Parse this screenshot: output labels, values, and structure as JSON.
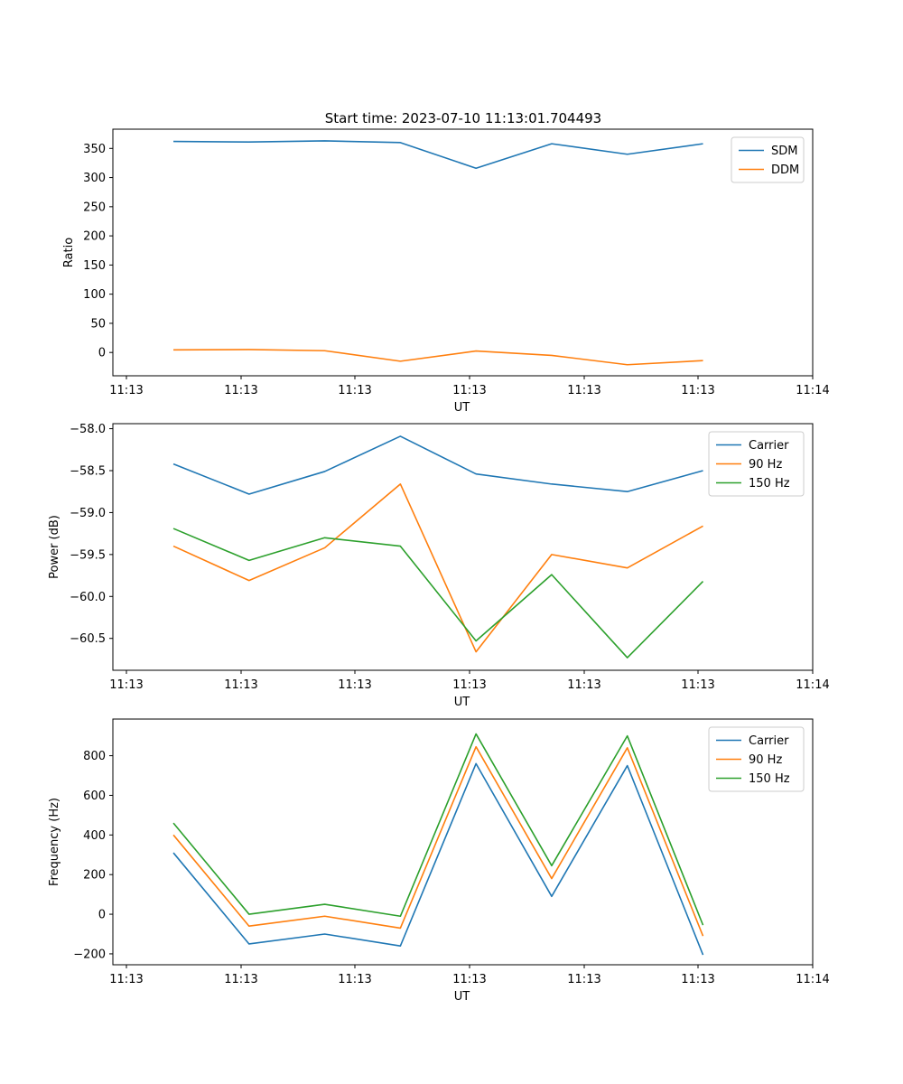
{
  "figure": {
    "title": "Start time: 2023-07-10 11:13:01.704493"
  },
  "chart_data": [
    {
      "type": "line",
      "title": "Start time: 2023-07-10 11:13:01.704493",
      "xlabel": "UT",
      "ylabel": "Ratio",
      "x_ticks": [
        "11:13",
        "11:13",
        "11:13",
        "11:13",
        "11:13",
        "11:13",
        "11:14"
      ],
      "y_ticks": [
        0,
        50,
        100,
        150,
        200,
        250,
        300,
        350
      ],
      "ylim": [
        -40,
        383
      ],
      "x": [
        1,
        2,
        3,
        4,
        5,
        6,
        7,
        8
      ],
      "xlim": [
        0.2,
        9.45
      ],
      "legend_loc": "upper right",
      "series": [
        {
          "name": "SDM",
          "color": "#1f77b4",
          "values": [
            362,
            361,
            363,
            360,
            316,
            358,
            340,
            358
          ]
        },
        {
          "name": "DDM",
          "color": "#ff7f0e",
          "values": [
            4.5,
            5,
            3,
            -15,
            2.5,
            -5,
            -21,
            -14
          ]
        }
      ]
    },
    {
      "type": "line",
      "title": "",
      "xlabel": "UT",
      "ylabel": "Power (dB)",
      "x_ticks": [
        "11:13",
        "11:13",
        "11:13",
        "11:13",
        "11:13",
        "11:13",
        "11:14"
      ],
      "y_ticks": [
        -60.5,
        -60.0,
        -59.5,
        -59.0,
        -58.5,
        -58.0
      ],
      "y_tick_labels": [
        "−60.5",
        "−60.0",
        "−59.5",
        "−59.0",
        "−58.5",
        "−58.0"
      ],
      "ylim": [
        -60.88,
        -57.94
      ],
      "x": [
        1,
        2,
        3,
        4,
        5,
        6,
        7,
        8
      ],
      "xlim": [
        0.2,
        9.45
      ],
      "legend_loc": "upper right",
      "series": [
        {
          "name": "Carrier",
          "color": "#1f77b4",
          "values": [
            -58.42,
            -58.78,
            -58.51,
            -58.09,
            -58.54,
            -58.66,
            -58.75,
            -58.5
          ]
        },
        {
          "name": "90 Hz",
          "color": "#ff7f0e",
          "values": [
            -59.4,
            -59.81,
            -59.42,
            -58.66,
            -60.66,
            -59.5,
            -59.66,
            -59.16
          ]
        },
        {
          "name": "150 Hz",
          "color": "#2ca02c",
          "values": [
            -59.19,
            -59.57,
            -59.3,
            -59.4,
            -60.53,
            -59.74,
            -60.73,
            -59.82
          ]
        }
      ]
    },
    {
      "type": "line",
      "title": "",
      "xlabel": "UT",
      "ylabel": "Frequency (Hz)",
      "x_ticks": [
        "11:13",
        "11:13",
        "11:13",
        "11:13",
        "11:13",
        "11:13",
        "11:14"
      ],
      "y_ticks": [
        -200,
        0,
        200,
        400,
        600,
        800
      ],
      "y_tick_labels": [
        "−200",
        "0",
        "200",
        "400",
        "600",
        "800"
      ],
      "ylim": [
        -255,
        985
      ],
      "x": [
        1,
        2,
        3,
        4,
        5,
        6,
        7,
        8
      ],
      "xlim": [
        0.2,
        9.45
      ],
      "legend_loc": "upper right",
      "series": [
        {
          "name": "Carrier",
          "color": "#1f77b4",
          "values": [
            310,
            -150,
            -100,
            -160,
            760,
            90,
            750,
            -205
          ]
        },
        {
          "name": "90 Hz",
          "color": "#ff7f0e",
          "values": [
            400,
            -60,
            -10,
            -70,
            845,
            180,
            840,
            -110
          ]
        },
        {
          "name": "150 Hz",
          "color": "#2ca02c",
          "values": [
            460,
            0,
            50,
            -10,
            910,
            245,
            900,
            -55
          ]
        }
      ]
    }
  ]
}
